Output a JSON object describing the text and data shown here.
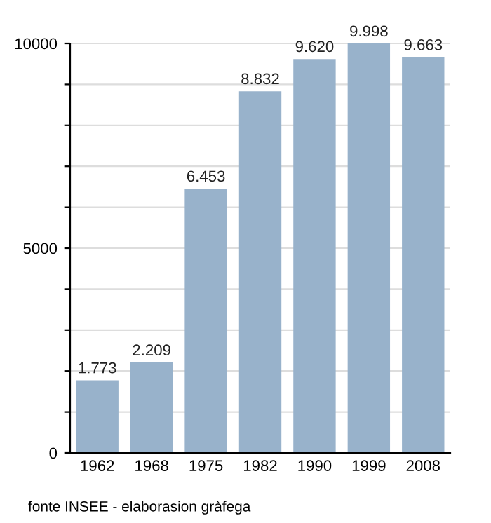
{
  "chart_data": {
    "type": "bar",
    "categories": [
      "1962",
      "1968",
      "1975",
      "1982",
      "1990",
      "1999",
      "2008"
    ],
    "values": [
      1773,
      2209,
      6453,
      8832,
      9620,
      9998,
      9663
    ],
    "value_labels": [
      "1.773",
      "2.209",
      "6.453",
      "8.832",
      "9.620",
      "9.998",
      "9.663"
    ],
    "color": "#98b2cb",
    "ylim": [
      0,
      10000
    ],
    "yticks": [
      0,
      {
        "value": 1000,
        "label": null
      },
      {
        "value": 2000,
        "label": null
      },
      {
        "value": 3000,
        "label": null
      },
      {
        "value": 4000,
        "label": null
      },
      5000,
      {
        "value": 6000,
        "label": null
      },
      {
        "value": 7000,
        "label": null
      },
      {
        "value": 8000,
        "label": null
      },
      {
        "value": 9000,
        "label": null
      },
      10000
    ],
    "grid": "y",
    "annotations": [
      "fonte INSEE - elaborasion gràfega"
    ]
  }
}
